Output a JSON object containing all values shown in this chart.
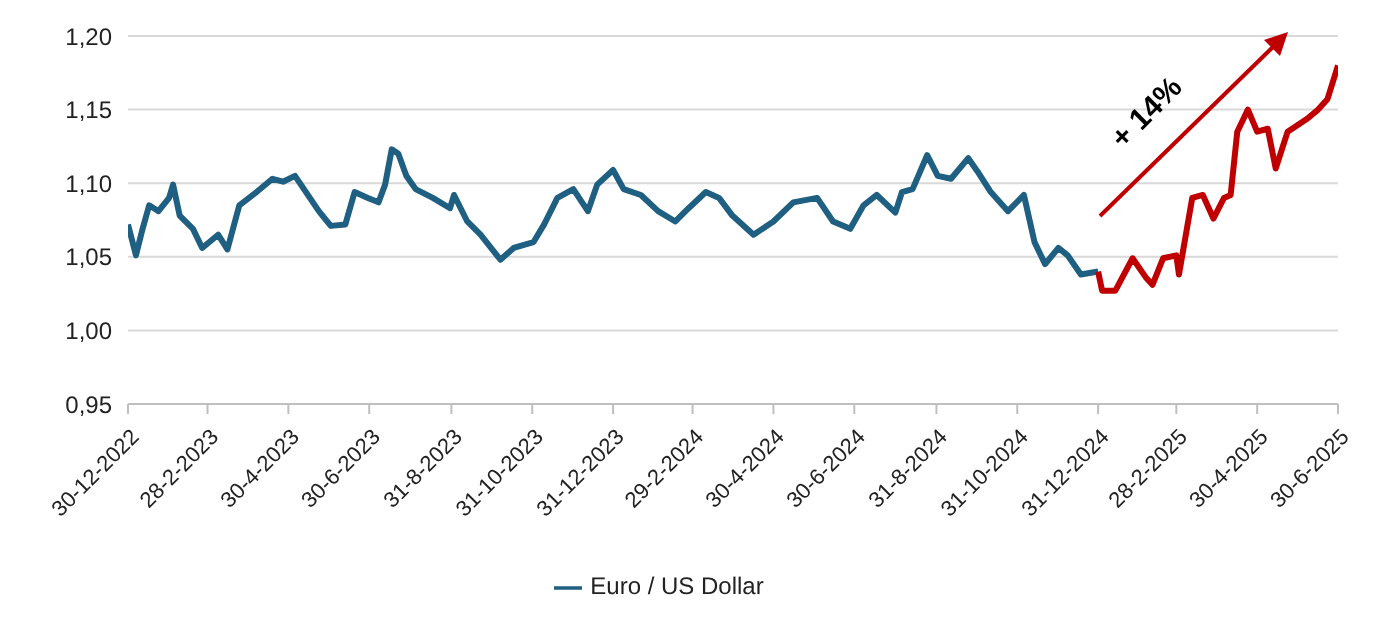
{
  "chart_data": {
    "type": "line",
    "ylim": [
      0.95,
      1.2
    ],
    "yticks": [
      {
        "value": 0.95,
        "label": "0,95"
      },
      {
        "value": 1.0,
        "label": "1,00"
      },
      {
        "value": 1.05,
        "label": "1,05"
      },
      {
        "value": 1.1,
        "label": "1,10"
      },
      {
        "value": 1.15,
        "label": "1,15"
      },
      {
        "value": 1.2,
        "label": "1,20"
      }
    ],
    "xlim": [
      "2022-12-30",
      "2025-06-30"
    ],
    "xticks": [
      {
        "value": "2022-12-30",
        "label": "30-12-2022"
      },
      {
        "value": "2023-02-28",
        "label": "28-2-2023"
      },
      {
        "value": "2023-04-30",
        "label": "30-4-2023"
      },
      {
        "value": "2023-06-30",
        "label": "30-6-2023"
      },
      {
        "value": "2023-08-31",
        "label": "31-8-2023"
      },
      {
        "value": "2023-10-31",
        "label": "31-10-2023"
      },
      {
        "value": "2023-12-31",
        "label": "31-12-2023"
      },
      {
        "value": "2024-02-29",
        "label": "29-2-2024"
      },
      {
        "value": "2024-04-30",
        "label": "30-4-2024"
      },
      {
        "value": "2024-06-30",
        "label": "30-6-2024"
      },
      {
        "value": "2024-08-31",
        "label": "31-8-2024"
      },
      {
        "value": "2024-10-31",
        "label": "31-10-2024"
      },
      {
        "value": "2024-12-31",
        "label": "31-12-2024"
      },
      {
        "value": "2025-02-28",
        "label": "28-2-2025"
      },
      {
        "value": "2025-04-30",
        "label": "30-4-2025"
      },
      {
        "value": "2025-06-30",
        "label": "30-6-2025"
      }
    ],
    "grid": "y",
    "legend": "bottom",
    "line_style": "solid",
    "annotations": [
      "+ 14%"
    ],
    "series": [
      {
        "name": "Euro / US Dollar",
        "color": "#1f5f82",
        "x": [
          "2022-12-30",
          "2023-01-05",
          "2023-01-10",
          "2023-01-15",
          "2023-01-22",
          "2023-01-30",
          "2023-02-02",
          "2023-02-07",
          "2023-02-17",
          "2023-02-24",
          "2023-03-08",
          "2023-03-15",
          "2023-03-24",
          "2023-04-06",
          "2023-04-18",
          "2023-04-26",
          "2023-05-05",
          "2023-05-23",
          "2023-06-01",
          "2023-06-12",
          "2023-06-19",
          "2023-06-29",
          "2023-07-07",
          "2023-07-12",
          "2023-07-17",
          "2023-07-22",
          "2023-07-28",
          "2023-08-04",
          "2023-08-17",
          "2023-08-30",
          "2023-09-02",
          "2023-09-12",
          "2023-09-22",
          "2023-10-07",
          "2023-10-17",
          "2023-11-01",
          "2023-11-09",
          "2023-11-19",
          "2023-12-01",
          "2023-12-12",
          "2023-12-19",
          "2023-12-31",
          "2024-01-08",
          "2024-01-21",
          "2024-02-03",
          "2024-02-16",
          "2024-02-26",
          "2024-03-10",
          "2024-03-20",
          "2024-03-30",
          "2024-04-15",
          "2024-04-30",
          "2024-05-15",
          "2024-06-02",
          "2024-06-14",
          "2024-06-27",
          "2024-07-07",
          "2024-07-17",
          "2024-07-31",
          "2024-08-05",
          "2024-08-13",
          "2024-08-24",
          "2024-09-01",
          "2024-09-11",
          "2024-09-24",
          "2024-10-01",
          "2024-10-11",
          "2024-10-24",
          "2024-11-05",
          "2024-11-13",
          "2024-11-21",
          "2024-12-01",
          "2024-12-08",
          "2024-12-18",
          "2024-12-31"
        ],
        "values": [
          1.072,
          1.051,
          1.069,
          1.085,
          1.081,
          1.09,
          1.099,
          1.078,
          1.069,
          1.056,
          1.065,
          1.055,
          1.085,
          1.094,
          1.103,
          1.101,
          1.105,
          1.081,
          1.071,
          1.072,
          1.094,
          1.09,
          1.087,
          1.099,
          1.123,
          1.12,
          1.105,
          1.096,
          1.09,
          1.083,
          1.092,
          1.074,
          1.065,
          1.048,
          1.056,
          1.06,
          1.072,
          1.09,
          1.096,
          1.081,
          1.099,
          1.109,
          1.096,
          1.092,
          1.081,
          1.074,
          1.083,
          1.094,
          1.09,
          1.078,
          1.065,
          1.074,
          1.087,
          1.09,
          1.074,
          1.069,
          1.085,
          1.092,
          1.08,
          1.094,
          1.096,
          1.119,
          1.105,
          1.103,
          1.117,
          1.108,
          1.094,
          1.081,
          1.092,
          1.06,
          1.045,
          1.056,
          1.051,
          1.038,
          1.04
        ]
      },
      {
        "color": "#c00000",
        "x": [
          "2024-12-31",
          "2025-01-03",
          "2025-01-13",
          "2025-01-26",
          "2025-02-05",
          "2025-02-10",
          "2025-02-18",
          "2025-02-28",
          "2025-03-02",
          "2025-03-12",
          "2025-03-20",
          "2025-03-28",
          "2025-04-05",
          "2025-04-10",
          "2025-04-15",
          "2025-04-23",
          "2025-04-30",
          "2025-05-08",
          "2025-05-14",
          "2025-05-23",
          "2025-06-07",
          "2025-06-15",
          "2025-06-22",
          "2025-06-30"
        ],
        "values": [
          1.04,
          1.027,
          1.027,
          1.049,
          1.036,
          1.031,
          1.049,
          1.051,
          1.038,
          1.09,
          1.092,
          1.076,
          1.09,
          1.092,
          1.135,
          1.15,
          1.135,
          1.137,
          1.11,
          1.135,
          1.144,
          1.15,
          1.157,
          1.18
        ]
      }
    ]
  }
}
